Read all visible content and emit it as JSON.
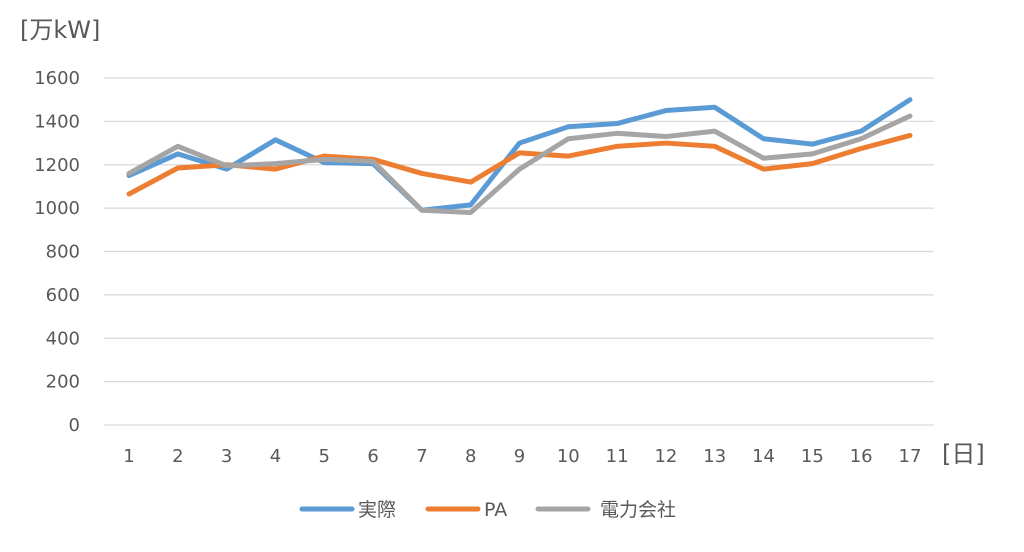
{
  "chart_data": {
    "type": "line",
    "title": "",
    "ylabel": "[万kW]",
    "xlabel": "[日]",
    "ylim": [
      0,
      1600
    ],
    "y_ticks": [
      0,
      200,
      400,
      600,
      800,
      1000,
      1200,
      1400,
      1600
    ],
    "categories": [
      "1",
      "2",
      "3",
      "4",
      "5",
      "6",
      "7",
      "8",
      "9",
      "10",
      "11",
      "12",
      "13",
      "14",
      "15",
      "16",
      "17"
    ],
    "grid": true,
    "legend_position": "bottom",
    "series": [
      {
        "name": "実際",
        "color": "#5b9bd5",
        "values": [
          1150,
          1250,
          1180,
          1315,
          1210,
          1205,
          990,
          1015,
          1300,
          1375,
          1390,
          1450,
          1465,
          1320,
          1295,
          1355,
          1500
        ]
      },
      {
        "name": "PA",
        "color": "#ed7d31",
        "values": [
          1065,
          1185,
          1200,
          1180,
          1240,
          1225,
          1160,
          1120,
          1255,
          1240,
          1285,
          1300,
          1285,
          1180,
          1205,
          1275,
          1335
        ]
      },
      {
        "name": "電力会社",
        "color": "#a5a5a5",
        "values": [
          1160,
          1285,
          1195,
          1205,
          1225,
          1215,
          990,
          980,
          1180,
          1320,
          1345,
          1330,
          1355,
          1230,
          1250,
          1320,
          1425
        ]
      }
    ]
  }
}
